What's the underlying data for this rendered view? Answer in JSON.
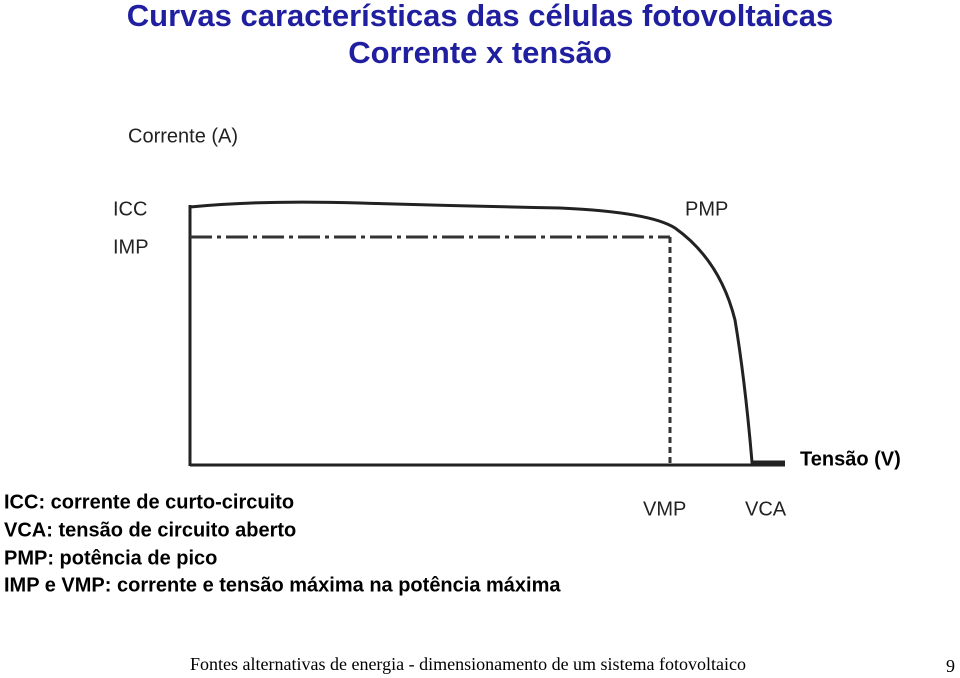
{
  "title": [
    "Curvas características das células fotovoltaicas",
    "Corrente x tensão"
  ],
  "diagram": {
    "y_axis_label": "Corrente (A)",
    "x_axis_label": "Tensão (V)",
    "labels": {
      "icc": "ICC",
      "imp": "IMP",
      "pmp": "PMP",
      "vmp": "VMP",
      "vca": "VCA"
    }
  },
  "legend": [
    "ICC: corrente de curto-circuito",
    "VCA: tensão de circuito aberto",
    "PMP: potência de pico",
    "IMP e VMP: corrente e tensão máxima na potência máxima"
  ],
  "footer": {
    "text": "Fontes alternativas de energia - dimensionamento de um sistema fotovoltaico",
    "page": "9"
  }
}
